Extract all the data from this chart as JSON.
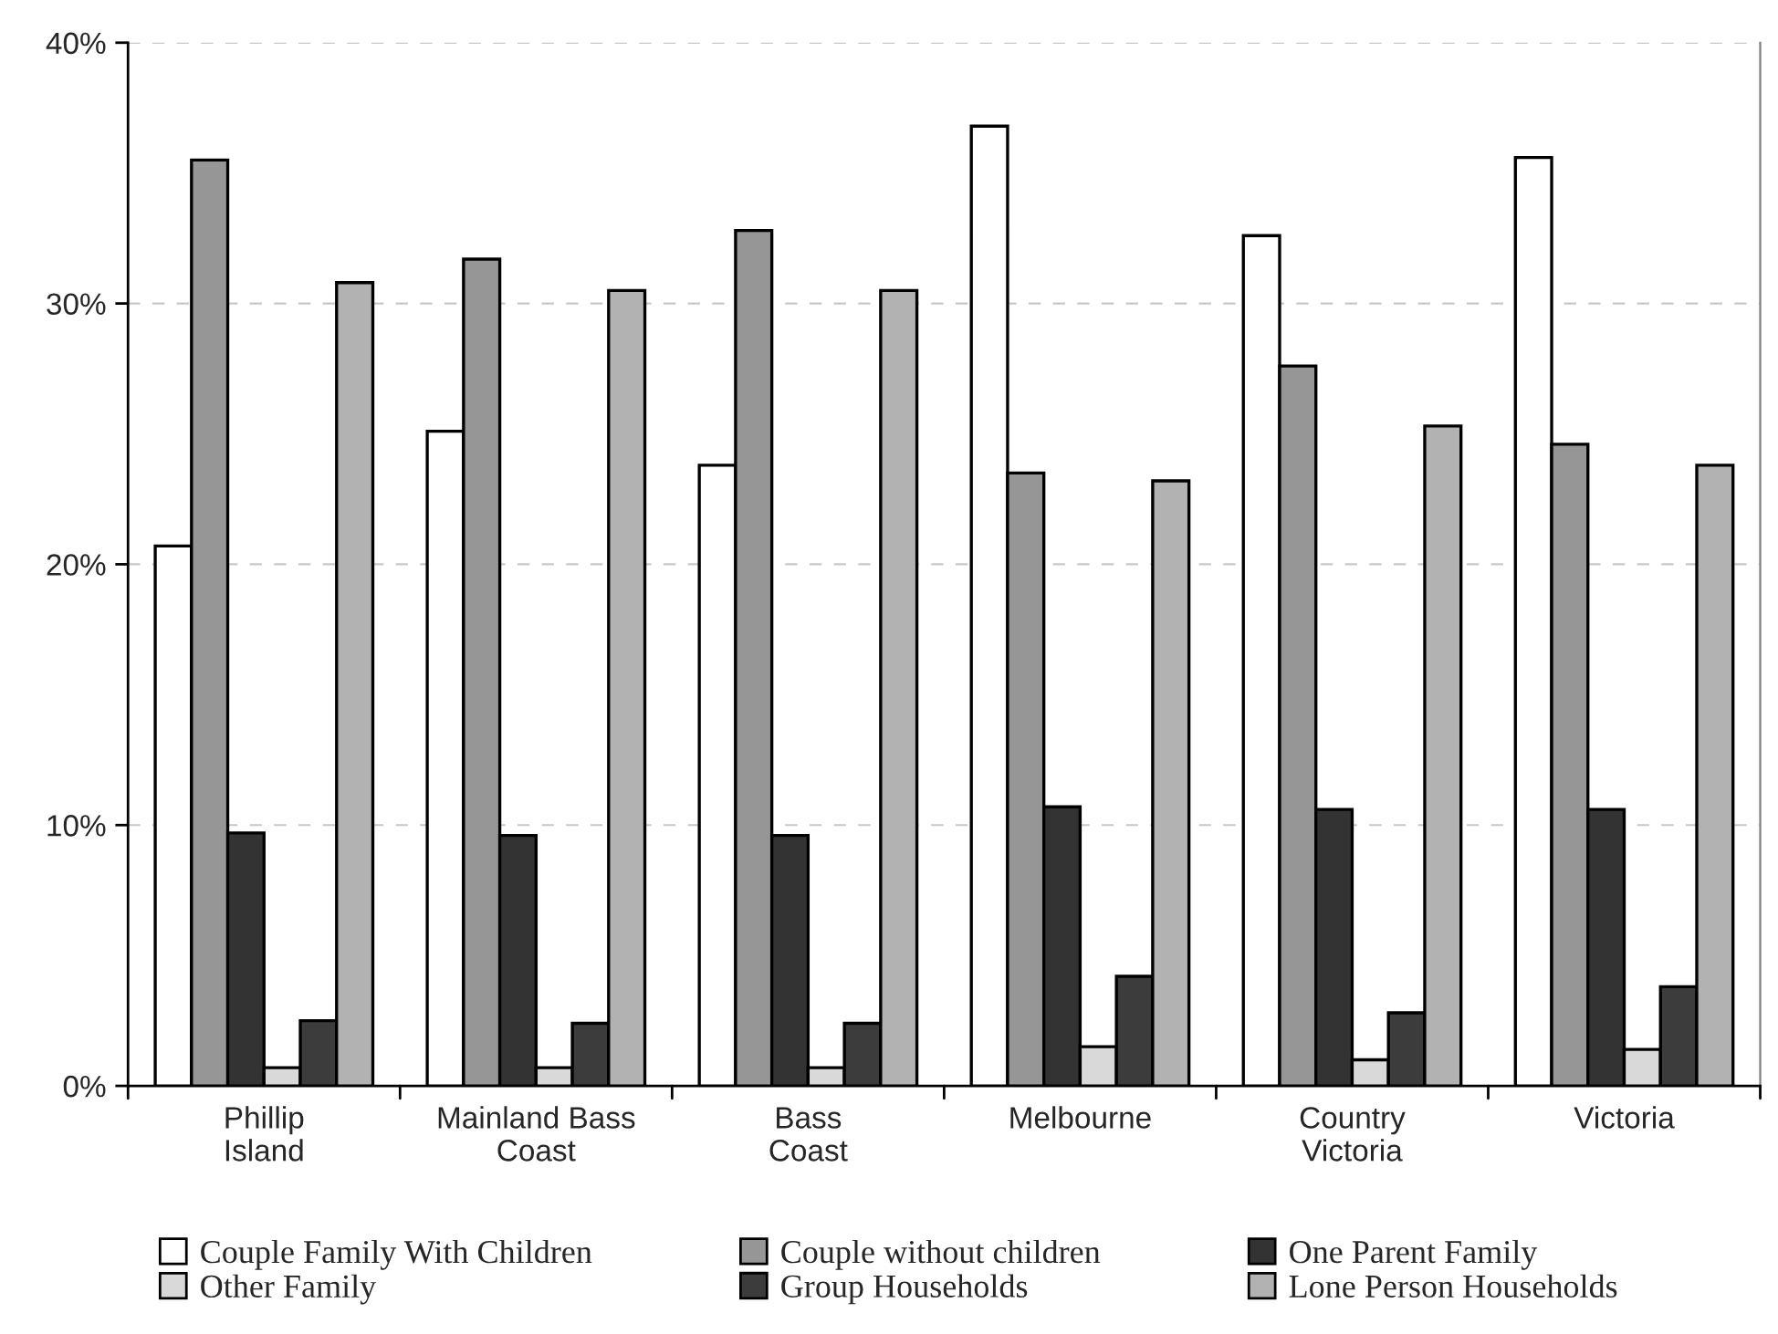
{
  "chart_data": {
    "type": "bar",
    "categories": [
      "Phillip\nIsland",
      "Mainland Bass\nCoast",
      "Bass\nCoast",
      "Melbourne",
      "Country\nVictoria",
      "Victoria"
    ],
    "series": [
      {
        "name": "Couple Family With Children",
        "color": "#ffffff",
        "values": [
          20.7,
          25.1,
          23.8,
          36.8,
          32.6,
          35.6
        ]
      },
      {
        "name": "Couple without children",
        "color": "#969696",
        "values": [
          35.5,
          31.7,
          32.8,
          23.5,
          27.6,
          24.6
        ]
      },
      {
        "name": "One Parent Family",
        "color": "#333333",
        "values": [
          9.7,
          9.6,
          9.6,
          10.7,
          10.6,
          10.6
        ]
      },
      {
        "name": "Other Family",
        "color": "#d9d9d9",
        "values": [
          0.7,
          0.7,
          0.7,
          1.5,
          1.0,
          1.4
        ]
      },
      {
        "name": "Group Households",
        "color": "#3c3c3c",
        "values": [
          2.5,
          2.4,
          2.4,
          4.2,
          2.8,
          3.8
        ]
      },
      {
        "name": "Lone Person Households",
        "color": "#b2b2b2",
        "values": [
          30.8,
          30.5,
          30.5,
          23.2,
          25.3,
          23.8
        ]
      }
    ],
    "ylim": [
      0,
      40
    ],
    "yticks": [
      {
        "value": 0,
        "label": "0%"
      },
      {
        "value": 10,
        "label": "10%"
      },
      {
        "value": 20,
        "label": "20%"
      },
      {
        "value": 30,
        "label": "30%"
      },
      {
        "value": 40,
        "label": "40%"
      }
    ],
    "grid": "y",
    "legend": "bottom"
  }
}
